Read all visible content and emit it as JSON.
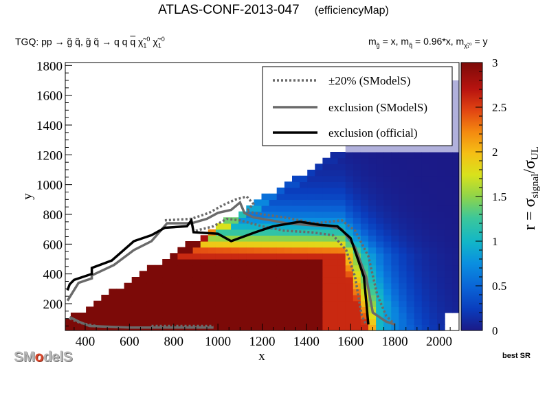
{
  "title": {
    "main": "ATLAS-CONF-2013-047",
    "sub": "(efficiencyMap)"
  },
  "process_label": "TGQ: pp → g̃ q̃, g̃ q̃ → q q q̄ χ̃ⁱ₀ χ̃ⁱ₀",
  "mass_label": "mᵩ = x, mᵩ = 0.96*x, mᵩ = y",
  "best_sr": "best SR",
  "logo": {
    "pre": "SM",
    "o": "o",
    "post": "delS"
  },
  "chart_data": {
    "type": "heatmap",
    "xlabel": "x",
    "ylabel": "y",
    "zlabel": "r = σsignal/σUL",
    "xlim": [
      310,
      2090
    ],
    "ylim": [
      20,
      1820
    ],
    "zlim": [
      0,
      3
    ],
    "x_ticks": [
      400,
      600,
      800,
      1000,
      1200,
      1400,
      1600,
      1800,
      2000
    ],
    "y_ticks": [
      200,
      400,
      600,
      800,
      1000,
      1200,
      1400,
      1600,
      1800
    ],
    "z_ticks": [
      0,
      0.5,
      1,
      1.5,
      2,
      2.5,
      3
    ],
    "legend": [
      {
        "label": "±20% (SModelS)",
        "style": "dotted",
        "color": "#6a6a6a"
      },
      {
        "label": "exclusion (SModelS)",
        "style": "solid",
        "color": "#6a6a6a"
      },
      {
        "label": "exclusion (official)",
        "style": "solid",
        "color": "#000000"
      }
    ],
    "legend_position": "top-right",
    "exclusion_official": [
      [
        320,
        290
      ],
      [
        330,
        330
      ],
      [
        350,
        360
      ],
      [
        430,
        400
      ],
      [
        430,
        440
      ],
      [
        520,
        490
      ],
      [
        620,
        620
      ],
      [
        700,
        660
      ],
      [
        760,
        710
      ],
      [
        860,
        720
      ],
      [
        880,
        760
      ],
      [
        890,
        680
      ],
      [
        1000,
        670
      ],
      [
        1060,
        620
      ],
      [
        1170,
        680
      ],
      [
        1250,
        720
      ],
      [
        1370,
        750
      ],
      [
        1460,
        730
      ],
      [
        1540,
        720
      ],
      [
        1600,
        640
      ],
      [
        1660,
        380
      ],
      [
        1680,
        60
      ]
    ],
    "exclusion_smodels_upper": [
      [
        320,
        220
      ],
      [
        370,
        340
      ],
      [
        430,
        370
      ],
      [
        430,
        390
      ],
      [
        530,
        460
      ],
      [
        620,
        560
      ],
      [
        700,
        620
      ],
      [
        770,
        740
      ],
      [
        880,
        740
      ],
      [
        950,
        770
      ],
      [
        1000,
        810
      ],
      [
        1060,
        830
      ],
      [
        1100,
        880
      ],
      [
        1120,
        810
      ],
      [
        1160,
        780
      ],
      [
        1240,
        760
      ],
      [
        1310,
        740
      ],
      [
        1400,
        730
      ],
      [
        1500,
        720
      ],
      [
        1560,
        700
      ],
      [
        1620,
        580
      ],
      [
        1670,
        380
      ],
      [
        1700,
        140
      ],
      [
        1760,
        80
      ],
      [
        1800,
        60
      ]
    ],
    "exclusion_smodels_lower": [
      [
        330,
        110
      ],
      [
        370,
        80
      ],
      [
        420,
        50
      ],
      [
        600,
        40
      ],
      [
        800,
        40
      ],
      [
        980,
        40
      ]
    ],
    "band_outer": [
      [
        760,
        760
      ],
      [
        880,
        770
      ],
      [
        960,
        810
      ],
      [
        1020,
        860
      ],
      [
        1080,
        900
      ],
      [
        1130,
        920
      ],
      [
        1160,
        870
      ],
      [
        1130,
        820
      ],
      [
        1200,
        800
      ],
      [
        1300,
        780
      ],
      [
        1440,
        740
      ],
      [
        1560,
        760
      ],
      [
        1620,
        690
      ],
      [
        1680,
        520
      ],
      [
        1720,
        260
      ],
      [
        1760,
        120
      ],
      [
        1800,
        60
      ]
    ],
    "band_inner": [
      [
        900,
        690
      ],
      [
        980,
        720
      ],
      [
        1040,
        770
      ],
      [
        1100,
        760
      ],
      [
        1200,
        720
      ],
      [
        1300,
        690
      ],
      [
        1420,
        680
      ],
      [
        1520,
        660
      ],
      [
        1580,
        560
      ],
      [
        1620,
        380
      ],
      [
        1650,
        120
      ],
      [
        1670,
        60
      ]
    ],
    "band_lower_outer": [
      [
        330,
        100
      ],
      [
        380,
        70
      ],
      [
        450,
        50
      ]
    ],
    "band_lower_inner": [
      [
        700,
        50
      ],
      [
        840,
        50
      ],
      [
        980,
        50
      ]
    ]
  }
}
